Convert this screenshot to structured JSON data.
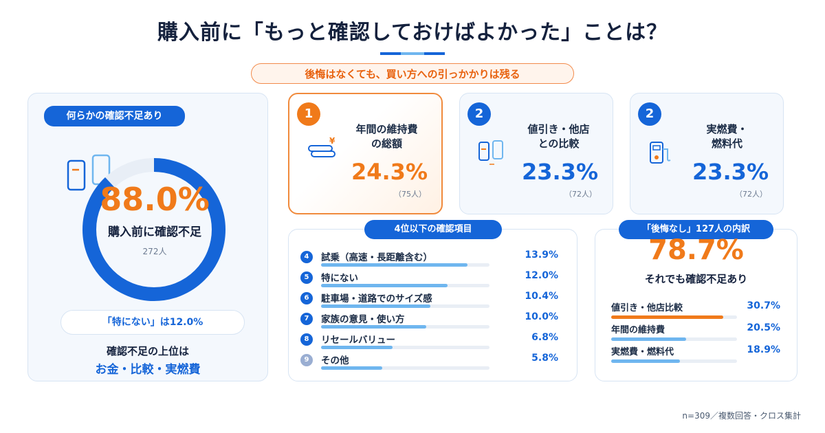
{
  "title": "購入前に「もっと確認しておけばよかった」ことは？",
  "subtitle": "後悔はなくても、買い方への引っかかりは残る",
  "colors": {
    "blue": "#1565d8",
    "light_blue": "#6fb6ef",
    "orange": "#f07a1a",
    "gray_blue": "#9aaed2"
  },
  "left_panel": {
    "pill": "何らかの確認不足あり",
    "donut_pct": "88.0%",
    "donut_label": "購入前に確認不足",
    "donut_count": "272人",
    "note": "「特にない」は12.0%",
    "summary_line1": "確認不足の上位は",
    "summary_line2": "お金・比較・実燃費"
  },
  "top_cards": [
    {
      "rank": "1",
      "label_line1": "年間の維持費",
      "label_line2": "の総額",
      "pct": "24.3%",
      "count": "（75人）",
      "icon": "yen-coins-icon"
    },
    {
      "rank": "2",
      "label_line1": "値引き・他店",
      "label_line2": "との比較",
      "pct": "23.3%",
      "count": "（72人）",
      "icon": "compare-phones-icon"
    },
    {
      "rank": "2",
      "label_line1": "実燃費・",
      "label_line2": "燃料代",
      "pct": "23.3%",
      "count": "（72人）",
      "icon": "fuel-pump-icon"
    }
  ],
  "lower_list": {
    "pill": "4位以下の確認項目",
    "items": [
      {
        "num": "4",
        "label": "試乗（高速・長距離含む）",
        "value": "13.9%"
      },
      {
        "num": "5",
        "label": "特にない",
        "value": "12.0%"
      },
      {
        "num": "6",
        "label": "駐車場・道路でのサイズ感",
        "value": "10.4%"
      },
      {
        "num": "7",
        "label": "家族の意見・使い方",
        "value": "10.0%"
      },
      {
        "num": "8",
        "label": "リセールバリュー",
        "value": "6.8%"
      },
      {
        "num": "9",
        "label": "その他",
        "value": "5.8%"
      }
    ]
  },
  "no_regret": {
    "pill": "「後悔なし」127人の内訳",
    "pct": "78.7%",
    "label": "それでも確認不足あり",
    "items": [
      {
        "label": "値引き・他店比較",
        "value": "30.7%"
      },
      {
        "label": "年間の維持費",
        "value": "20.5%"
      },
      {
        "label": "実燃費・燃料代",
        "value": "18.9%"
      }
    ]
  },
  "footnote": "n=309／複数回答・クロス集計",
  "chart_data": [
    {
      "type": "pie",
      "categories": [
        "購入前に確認不足",
        "特にない"
      ],
      "values": [
        88.0,
        12.0
      ]
    },
    {
      "type": "bar",
      "categories": [
        "試乗（高速・長距離含む）",
        "特にない",
        "駐車場・道路でのサイズ感",
        "家族の意見・使い方",
        "リセールバリュー",
        "その他"
      ],
      "values": [
        13.9,
        12.0,
        10.4,
        10.0,
        6.8,
        5.8
      ]
    },
    {
      "type": "bar",
      "categories": [
        "値引き・他店比較",
        "年間の維持費",
        "実燃費・燃料代"
      ],
      "values": [
        30.7,
        20.5,
        18.9
      ]
    }
  ]
}
